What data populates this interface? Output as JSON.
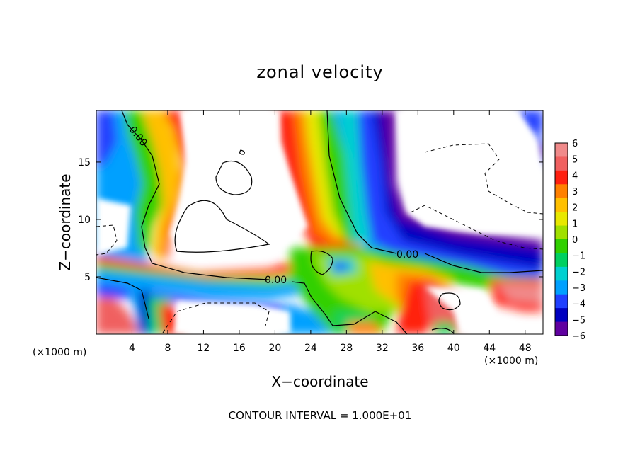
{
  "chart_data": {
    "type": "heatmap",
    "title": "zonal velocity",
    "xlabel": "X−coordinate",
    "ylabel": "Z−coordinate",
    "x_unit_label_left": "(×1000 m)",
    "x_unit_label_right": "(×1000 m)",
    "note": "CONTOUR INTERVAL = 1.000E+01",
    "xlim": [
      0,
      50
    ],
    "ylim": [
      0,
      19.5
    ],
    "x_ticks": [
      4,
      8,
      12,
      16,
      20,
      24,
      28,
      32,
      36,
      40,
      44,
      48
    ],
    "y_ticks": [
      5,
      10,
      15
    ],
    "colorbar": {
      "levels": [
        6,
        5,
        4,
        3,
        2,
        1,
        0,
        -1,
        -2,
        -3,
        -4,
        -5,
        -6
      ],
      "colors": [
        "#f08a8a",
        "#f06060",
        "#ff2010",
        "#ff8000",
        "#ffc000",
        "#e8e800",
        "#a0e000",
        "#30d000",
        "#00d060",
        "#00d0d0",
        "#00a0ff",
        "#2040ff",
        "#0000c0",
        "#6000a0"
      ]
    },
    "contour_labels": [
      {
        "text": "0.00",
        "x": 4.5,
        "y": 17.2
      },
      {
        "text": "0.00",
        "x": 34.0,
        "y": 7.1
      },
      {
        "text": "0.00",
        "x": 20.0,
        "y": 4.8
      }
    ],
    "series": [
      {
        "name": "",
        "values": []
      }
    ]
  }
}
